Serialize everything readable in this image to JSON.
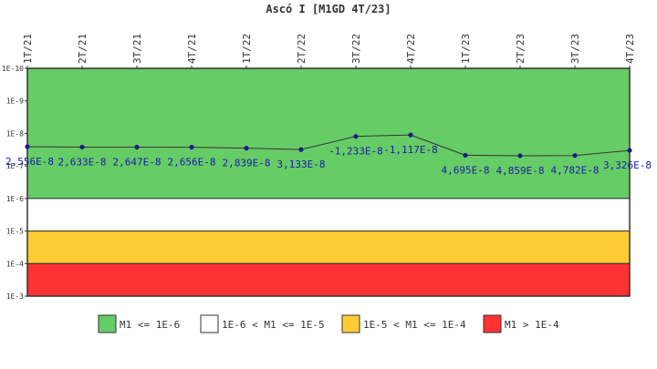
{
  "chart_data": {
    "type": "line",
    "title": "Ascó I [M1GD 4T/23]",
    "x": [
      "1T/21",
      "2T/21",
      "3T/21",
      "4T/21",
      "1T/22",
      "2T/22",
      "3T/22",
      "4T/22",
      "1T/23",
      "2T/23",
      "3T/23",
      "4T/23"
    ],
    "series": [
      {
        "values": [
          2.556e-08,
          2.633e-08,
          2.647e-08,
          2.656e-08,
          2.839e-08,
          3.133e-08,
          -1.233e-08,
          -1.117e-08,
          4.695e-08,
          4.859e-08,
          4.782e-08,
          3.326e-08
        ],
        "labels": [
          "2,556E-8",
          "2,633E-8",
          "2,647E-8",
          "2,656E-8",
          "2,839E-8",
          "3,133E-8",
          "-1,233E-8",
          "-1,117E-8",
          "4,695E-8",
          "4,859E-8",
          "4,782E-8",
          "3,326E-8"
        ]
      }
    ],
    "y_scale": "log",
    "y_reversed": true,
    "ylim": [
      1e-10,
      0.001
    ],
    "ytick_labels": [
      "1E-10",
      "1E-9",
      "1E-8",
      "1E-7",
      "1E-6",
      "1E-5",
      "1E-4",
      "1E-3"
    ],
    "bands": [
      {
        "from": 1e-10,
        "to": 1e-06,
        "color": "#66cc66",
        "legend": "M1 <= 1E-6"
      },
      {
        "from": 1e-06,
        "to": 1e-05,
        "color": "#ffffff",
        "legend": "1E-6 < M1 <= 1E-5"
      },
      {
        "from": 1e-05,
        "to": 0.0001,
        "color": "#ffcc33",
        "legend": "1E-5 < M1 <= 1E-4"
      },
      {
        "from": 0.0001,
        "to": 0.001,
        "color": "#ff3333",
        "legend": "M1 > 1E-4"
      }
    ],
    "line_color": "#333333",
    "point_color": "#1a1a8c",
    "label_color": "#1a1aa8",
    "legend_position": "bottom",
    "grid": false
  }
}
